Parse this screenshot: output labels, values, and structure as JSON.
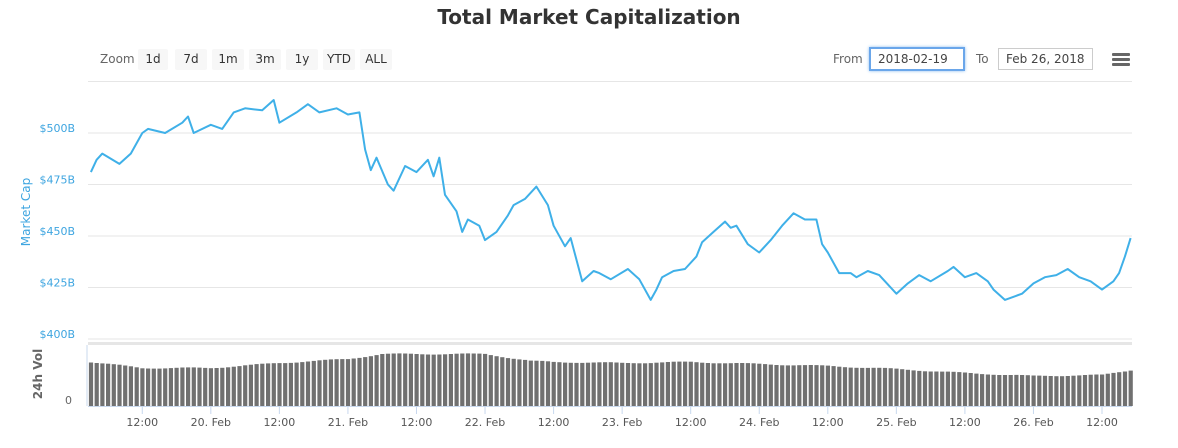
{
  "title": "Total Market Capitalization",
  "zoom": {
    "label": "Zoom",
    "buttons": [
      "1d",
      "7d",
      "1m",
      "3m",
      "1y",
      "YTD",
      "ALL"
    ]
  },
  "range": {
    "from_label": "From",
    "from_value": "2018-02-19",
    "to_label": "To",
    "to_value": "Feb 26, 2018"
  },
  "menu_icon": "hamburger-menu-icon",
  "colors": {
    "line": "#3fb0e8",
    "axis_label": "#3ea5e0",
    "volume": "#707070",
    "grid": "#e6e6e6"
  },
  "chart_data": [
    {
      "type": "line",
      "ylabel": "Market Cap",
      "yticks": [
        "$400B",
        "$425B",
        "$450B",
        "$475B",
        "$500B"
      ],
      "ytick_values": [
        400,
        425,
        450,
        475,
        500
      ],
      "ylim": [
        400,
        525
      ],
      "xlim": [
        "2018-02-19T02:30",
        "2018-02-26T17:15"
      ],
      "xticks": [
        {
          "t": "2018-02-19T12:00",
          "label": "12:00"
        },
        {
          "t": "2018-02-20T00:00",
          "label": "20. Feb"
        },
        {
          "t": "2018-02-20T12:00",
          "label": "12:00"
        },
        {
          "t": "2018-02-21T00:00",
          "label": "21. Feb"
        },
        {
          "t": "2018-02-21T12:00",
          "label": "12:00"
        },
        {
          "t": "2018-02-22T00:00",
          "label": "22. Feb"
        },
        {
          "t": "2018-02-22T12:00",
          "label": "12:00"
        },
        {
          "t": "2018-02-23T00:00",
          "label": "23. Feb"
        },
        {
          "t": "2018-02-23T12:00",
          "label": "12:00"
        },
        {
          "t": "2018-02-24T00:00",
          "label": "24. Feb"
        },
        {
          "t": "2018-02-24T12:00",
          "label": "12:00"
        },
        {
          "t": "2018-02-25T00:00",
          "label": "25. Feb"
        },
        {
          "t": "2018-02-25T12:00",
          "label": "12:00"
        },
        {
          "t": "2018-02-26T00:00",
          "label": "26. Feb"
        },
        {
          "t": "2018-02-26T12:00",
          "label": "12:00"
        }
      ],
      "grid": true,
      "points": [
        [
          "2018-02-19T03:00",
          481
        ],
        [
          "2018-02-19T04:00",
          487
        ],
        [
          "2018-02-19T05:00",
          490
        ],
        [
          "2018-02-19T08:00",
          485
        ],
        [
          "2018-02-19T10:00",
          490
        ],
        [
          "2018-02-19T12:00",
          500
        ],
        [
          "2018-02-19T13:00",
          502
        ],
        [
          "2018-02-19T16:00",
          500
        ],
        [
          "2018-02-19T19:00",
          505
        ],
        [
          "2018-02-19T20:00",
          508
        ],
        [
          "2018-02-19T21:00",
          500
        ],
        [
          "2018-02-20T00:00",
          504
        ],
        [
          "2018-02-20T02:00",
          502
        ],
        [
          "2018-02-20T04:00",
          510
        ],
        [
          "2018-02-20T06:00",
          512
        ],
        [
          "2018-02-20T09:00",
          511
        ],
        [
          "2018-02-20T11:00",
          516
        ],
        [
          "2018-02-20T12:00",
          505
        ],
        [
          "2018-02-20T15:00",
          510
        ],
        [
          "2018-02-20T17:00",
          514
        ],
        [
          "2018-02-20T19:00",
          510
        ],
        [
          "2018-02-20T22:00",
          512
        ],
        [
          "2018-02-21T00:00",
          509
        ],
        [
          "2018-02-21T02:00",
          510
        ],
        [
          "2018-02-21T03:00",
          492
        ],
        [
          "2018-02-21T04:00",
          482
        ],
        [
          "2018-02-21T05:00",
          488
        ],
        [
          "2018-02-21T07:00",
          475
        ],
        [
          "2018-02-21T08:00",
          472
        ],
        [
          "2018-02-21T10:00",
          484
        ],
        [
          "2018-02-21T12:00",
          481
        ],
        [
          "2018-02-21T14:00",
          487
        ],
        [
          "2018-02-21T15:00",
          479
        ],
        [
          "2018-02-21T16:00",
          488
        ],
        [
          "2018-02-21T17:00",
          470
        ],
        [
          "2018-02-21T19:00",
          462
        ],
        [
          "2018-02-21T20:00",
          452
        ],
        [
          "2018-02-21T21:00",
          458
        ],
        [
          "2018-02-21T23:00",
          455
        ],
        [
          "2018-02-22T00:00",
          448
        ],
        [
          "2018-02-22T02:00",
          452
        ],
        [
          "2018-02-22T04:00",
          460
        ],
        [
          "2018-02-22T05:00",
          465
        ],
        [
          "2018-02-22T07:00",
          468
        ],
        [
          "2018-02-22T09:00",
          474
        ],
        [
          "2018-02-22T11:00",
          465
        ],
        [
          "2018-02-22T12:00",
          455
        ],
        [
          "2018-02-22T14:00",
          445
        ],
        [
          "2018-02-22T15:00",
          449
        ],
        [
          "2018-02-22T17:00",
          428
        ],
        [
          "2018-02-22T19:00",
          433
        ],
        [
          "2018-02-22T20:00",
          432
        ],
        [
          "2018-02-22T22:00",
          429
        ],
        [
          "2018-02-23T01:00",
          434
        ],
        [
          "2018-02-23T03:00",
          429
        ],
        [
          "2018-02-23T05:00",
          419
        ],
        [
          "2018-02-23T06:00",
          424
        ],
        [
          "2018-02-23T07:00",
          430
        ],
        [
          "2018-02-23T09:00",
          433
        ],
        [
          "2018-02-23T11:00",
          434
        ],
        [
          "2018-02-23T13:00",
          440
        ],
        [
          "2018-02-23T14:00",
          447
        ],
        [
          "2018-02-23T16:00",
          452
        ],
        [
          "2018-02-23T18:00",
          457
        ],
        [
          "2018-02-23T19:00",
          454
        ],
        [
          "2018-02-23T20:00",
          455
        ],
        [
          "2018-02-23T22:00",
          446
        ],
        [
          "2018-02-24T00:00",
          442
        ],
        [
          "2018-02-24T02:00",
          448
        ],
        [
          "2018-02-24T04:00",
          455
        ],
        [
          "2018-02-24T06:00",
          461
        ],
        [
          "2018-02-24T08:00",
          458
        ],
        [
          "2018-02-24T10:00",
          458
        ],
        [
          "2018-02-24T11:00",
          446
        ],
        [
          "2018-02-24T12:00",
          442
        ],
        [
          "2018-02-24T14:00",
          432
        ],
        [
          "2018-02-24T16:00",
          432
        ],
        [
          "2018-02-24T17:00",
          430
        ],
        [
          "2018-02-24T19:00",
          433
        ],
        [
          "2018-02-24T21:00",
          431
        ],
        [
          "2018-02-25T00:00",
          422
        ],
        [
          "2018-02-25T02:00",
          427
        ],
        [
          "2018-02-25T04:00",
          431
        ],
        [
          "2018-02-25T06:00",
          428
        ],
        [
          "2018-02-25T09:00",
          433
        ],
        [
          "2018-02-25T10:00",
          435
        ],
        [
          "2018-02-25T12:00",
          430
        ],
        [
          "2018-02-25T14:00",
          432
        ],
        [
          "2018-02-25T16:00",
          428
        ],
        [
          "2018-02-25T17:00",
          424
        ],
        [
          "2018-02-25T19:00",
          419
        ],
        [
          "2018-02-25T22:00",
          422
        ],
        [
          "2018-02-26T00:00",
          427
        ],
        [
          "2018-02-26T02:00",
          430
        ],
        [
          "2018-02-26T04:00",
          431
        ],
        [
          "2018-02-26T06:00",
          434
        ],
        [
          "2018-02-26T08:00",
          430
        ],
        [
          "2018-02-26T10:00",
          428
        ],
        [
          "2018-02-26T12:00",
          424
        ],
        [
          "2018-02-26T14:00",
          428
        ],
        [
          "2018-02-26T15:00",
          432
        ],
        [
          "2018-02-26T16:00",
          440
        ],
        [
          "2018-02-26T17:00",
          449
        ]
      ]
    },
    {
      "type": "bar",
      "ylabel": "24h Vol",
      "yticks": [
        "0"
      ],
      "relative_volume": [
        [
          "2018-02-19T03:00",
          44
        ],
        [
          "2018-02-19T12:00",
          38
        ],
        [
          "2018-02-20T00:00",
          38
        ],
        [
          "2018-02-20T12:00",
          43
        ],
        [
          "2018-02-21T00:00",
          47
        ],
        [
          "2018-02-21T06:00",
          52
        ],
        [
          "2018-02-22T00:00",
          52
        ],
        [
          "2018-02-22T08:00",
          45
        ],
        [
          "2018-02-22T12:00",
          44
        ],
        [
          "2018-02-23T00:00",
          43
        ],
        [
          "2018-02-23T12:00",
          44
        ],
        [
          "2018-02-24T00:00",
          42
        ],
        [
          "2018-02-24T12:00",
          40
        ],
        [
          "2018-02-25T00:00",
          37
        ],
        [
          "2018-02-25T12:00",
          33
        ],
        [
          "2018-02-26T00:00",
          30
        ],
        [
          "2018-02-26T12:00",
          31
        ],
        [
          "2018-02-26T17:00",
          36
        ]
      ]
    }
  ]
}
